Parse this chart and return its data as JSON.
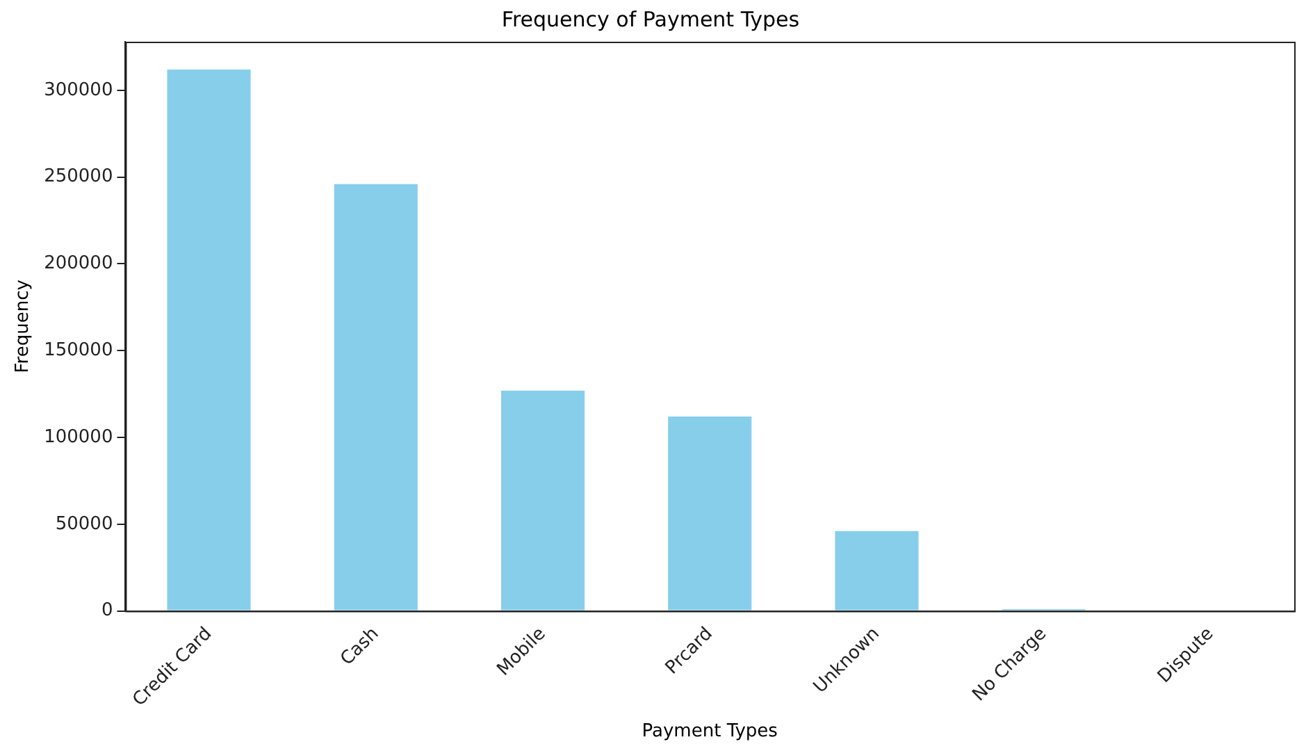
{
  "chart_data": {
    "type": "bar",
    "title": "Frequency of Payment Types",
    "xlabel": "Payment Types",
    "ylabel": "Frequency",
    "categories": [
      "Credit Card",
      "Cash",
      "Mobile",
      "Prcard",
      "Unknown",
      "No Charge",
      "Dispute"
    ],
    "values": [
      312000,
      246000,
      127000,
      112000,
      46000,
      1000,
      null
    ],
    "color": "#87ceeb",
    "ylim": [
      0,
      328000
    ],
    "yticks": [
      0,
      50000,
      100000,
      150000,
      200000,
      250000,
      300000
    ],
    "grid": false,
    "legend": false
  }
}
